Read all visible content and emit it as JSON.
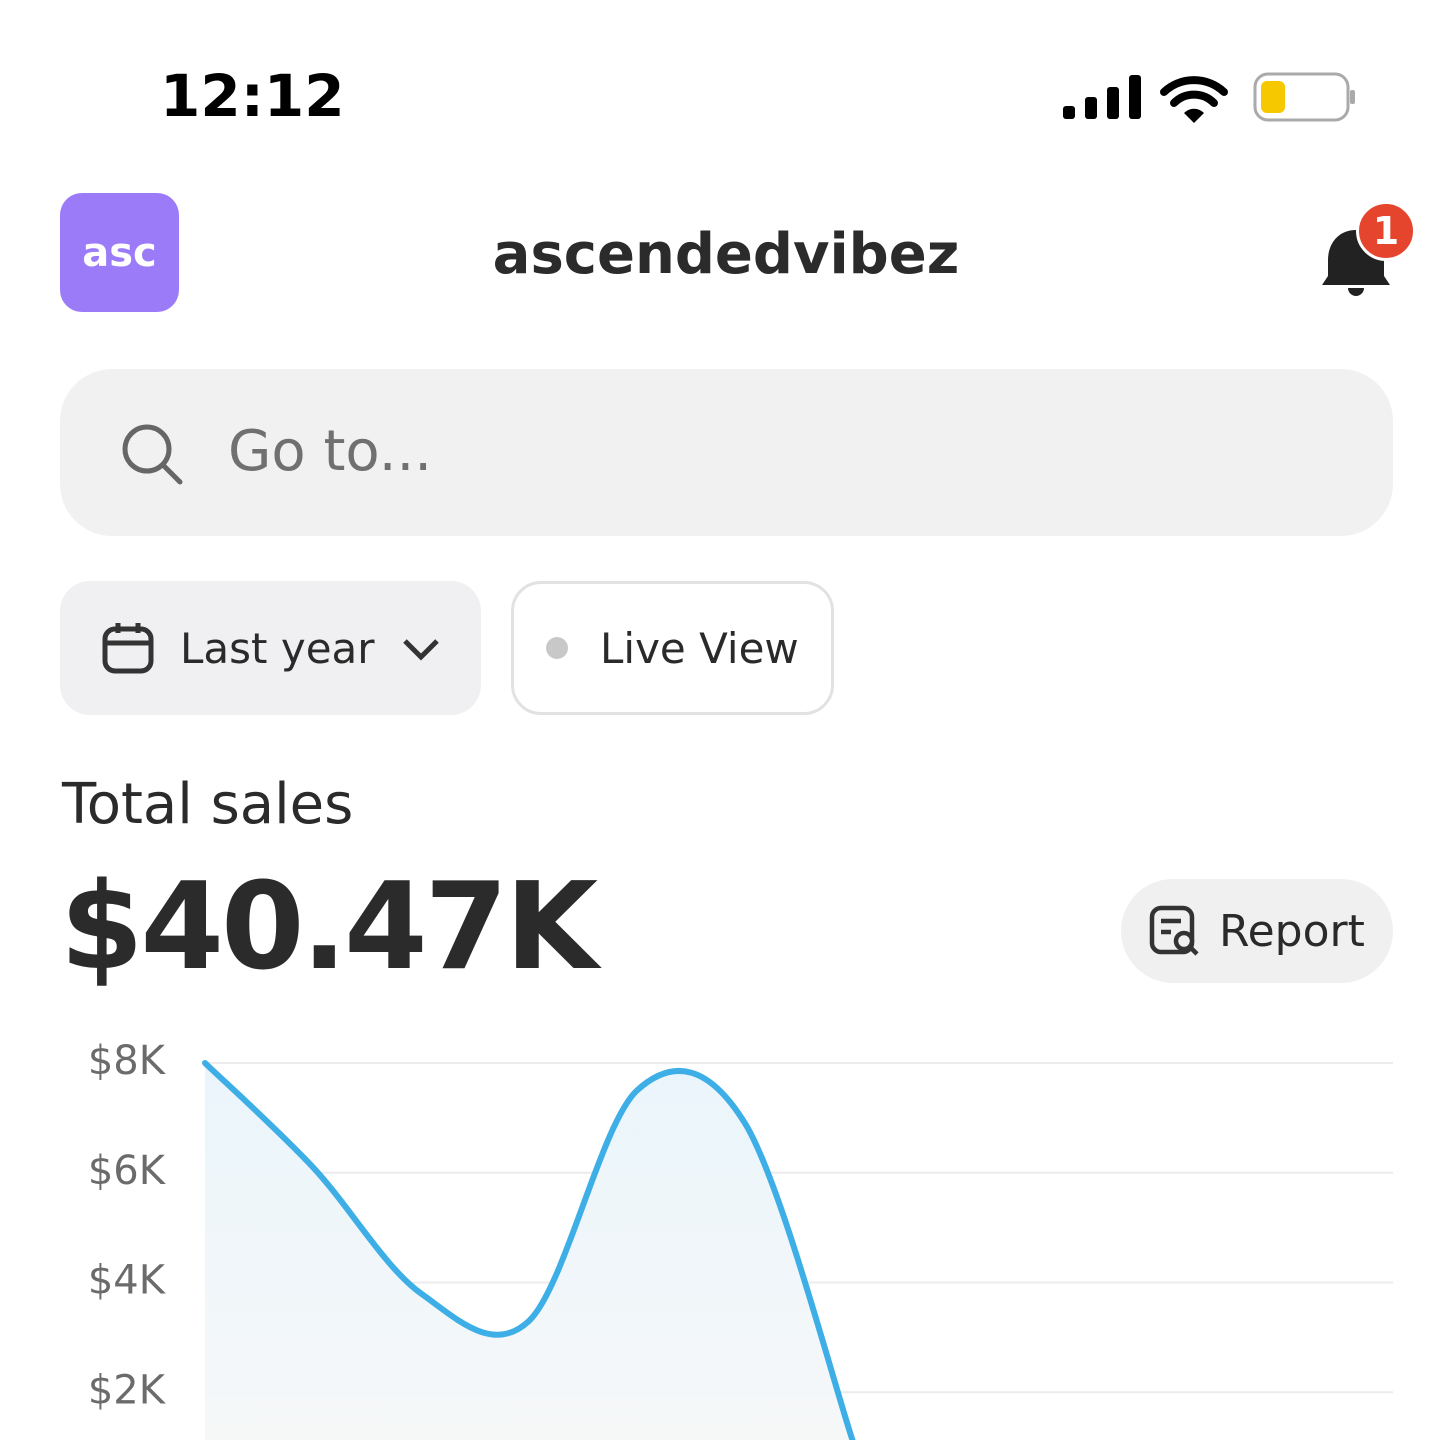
{
  "status_bar": {
    "time": "12:12"
  },
  "header": {
    "avatar": "asc",
    "title": "ascendedvibez",
    "badge": "1"
  },
  "search": {
    "placeholder": "Go to..."
  },
  "filters": [
    "Last year",
    "Live View"
  ],
  "summary": {
    "label": "Total sales",
    "value": "$40.47K",
    "button": "Report"
  },
  "chart_data": {
    "type": "area",
    "x": [
      0,
      1,
      2,
      3,
      4,
      5,
      6
    ],
    "xlim": [
      0,
      11
    ],
    "series": [
      {
        "color": "#3eaee6",
        "values": [
          8000,
          6100,
          3800,
          3300,
          7500,
          6900,
          1100
        ]
      }
    ],
    "ylim": [
      0,
      8000
    ],
    "yticks": [
      {
        "value": 2000,
        "label": "$2K"
      },
      {
        "value": 4000,
        "label": "$4K"
      },
      {
        "value": 6000,
        "label": "$6K"
      },
      {
        "value": 8000,
        "label": "$8K"
      }
    ],
    "grid": true
  }
}
